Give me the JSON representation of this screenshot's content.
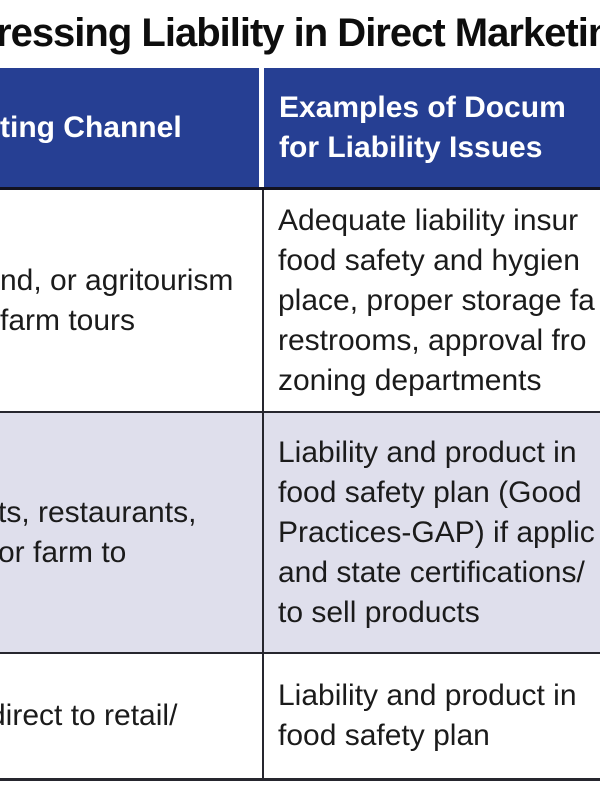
{
  "title": "ressing Liability in Direct Marketin",
  "colors": {
    "header_bg": "#263F93",
    "alt_row_bg": "#DFDFEC",
    "border": "#26262E",
    "header_text": "#FFFFFF",
    "body_text": "#1B1B1B"
  },
  "table": {
    "header": {
      "channel_col": "ting Channel",
      "docs_col_line1": "Examples of Docum",
      "docs_col_line2": "for Liability Issues"
    },
    "rows": [
      {
        "channel_lines": [
          "nd, or agritourism",
          "farm tours"
        ],
        "docs_lines": [
          "Adequate liability insur",
          "food safety and hygien",
          "place, proper storage fa",
          "restrooms, approval fro",
          "zoning departments"
        ]
      },
      {
        "channel_lines": [
          "ts, restaurants,",
          "or farm to"
        ],
        "docs_lines": [
          "Liability and product in",
          "food safety plan (Good",
          "Practices-GAP) if applic",
          "and state certifications/",
          "to sell products"
        ]
      },
      {
        "channel_lines": [
          "direct to retail/"
        ],
        "docs_lines": [
          "Liability and product in",
          "food safety plan"
        ]
      }
    ]
  }
}
